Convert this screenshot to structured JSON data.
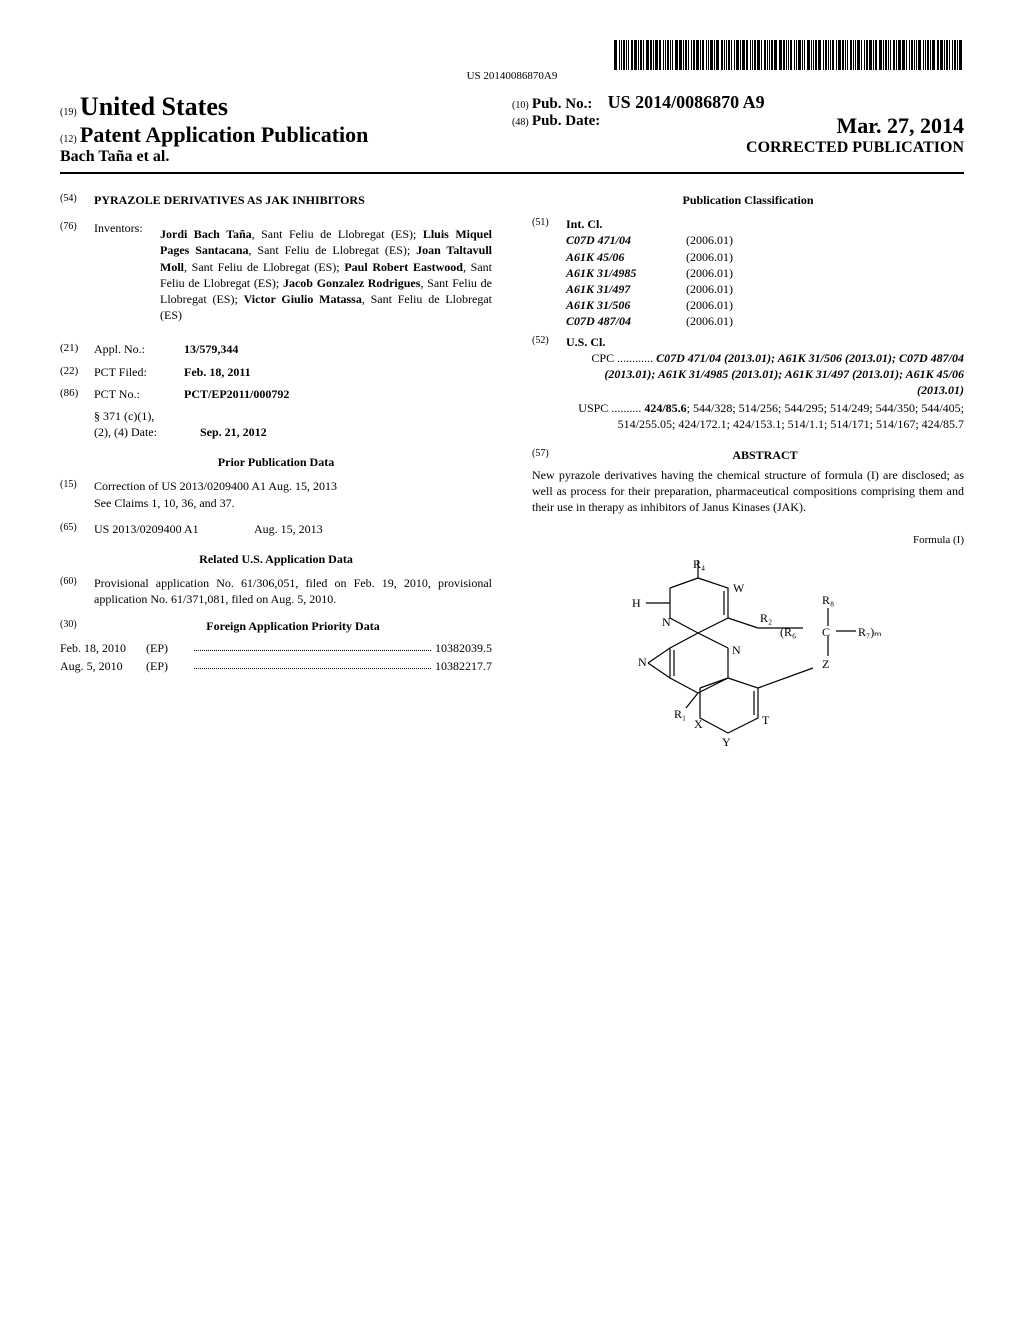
{
  "barcode_number": "US 20140086870A9",
  "header": {
    "left": {
      "l1_code": "(19)",
      "l1_text": "United States",
      "l2_code": "(12)",
      "l2_text": "Patent Application Publication",
      "authors": "Bach Taña et al."
    },
    "right": {
      "l1_code": "(10)",
      "l1_label": "Pub. No.:",
      "l1_val": "US 2014/0086870 A9",
      "l2_code": "(48)",
      "l2_label": "Pub. Date:",
      "l2_val": "Mar. 27, 2014",
      "l3": "CORRECTED PUBLICATION"
    }
  },
  "left_col": {
    "code54": "(54)",
    "title54": "PYRAZOLE DERIVATIVES AS JAK INHIBITORS",
    "code76": "(76)",
    "label76": "Inventors:",
    "inventors_html": [
      [
        "Jordi Bach Taña",
        ", Sant Feliu de Llobregat (ES); "
      ],
      [
        "Lluis Miquel Pages Santacana",
        ", Sant Feliu de Llobregat (ES); "
      ],
      [
        "Joan Taltavull Moll",
        ", Sant Feliu de Llobregat (ES); "
      ],
      [
        "Paul Robert Eastwood",
        ", Sant Feliu de Llobregat (ES); "
      ],
      [
        "Jacob Gonzalez Rodrigues",
        ", Sant Feliu de Llobregat (ES); "
      ],
      [
        "Victor Giulio Matassa",
        ", Sant Feliu de Llobregat (ES)"
      ]
    ],
    "entries": [
      {
        "code": "(21)",
        "label": "Appl. No.:",
        "val": "13/579,344"
      },
      {
        "code": "(22)",
        "label": "PCT Filed:",
        "val": "Feb. 18, 2011"
      },
      {
        "code": "(86)",
        "label": "PCT No.:",
        "val": "PCT/EP2011/000792"
      }
    ],
    "s371_lines": [
      "§ 371 (c)(1),",
      "(2), (4) Date:"
    ],
    "s371_date": "Sep. 21, 2012",
    "prior_pub_title": "Prior Publication Data",
    "code15": "(15)",
    "correction15": "Correction of US 2013/0209400 A1 Aug. 15, 2013",
    "see15": "See Claims 1, 10, 36, and 37.",
    "code65": "(65)",
    "val65a": "US 2013/0209400 A1",
    "val65b": "Aug. 15, 2013",
    "related_title": "Related U.S. Application Data",
    "code60": "(60)",
    "text60": "Provisional application No. 61/306,051, filed on Feb. 19, 2010, provisional application No. 61/371,081, filed on Aug. 5, 2010.",
    "code30": "(30)",
    "fap_title": "Foreign Application Priority Data",
    "fap": [
      {
        "date": "Feb. 18, 2010",
        "cc": "(EP)",
        "num": "10382039.5"
      },
      {
        "date": "Aug. 5, 2010",
        "cc": "(EP)",
        "num": "10382217.7"
      }
    ]
  },
  "right_col": {
    "pub_class_title": "Publication Classification",
    "code51": "(51)",
    "intcl_label": "Int. Cl.",
    "intcl": [
      {
        "sym": "C07D 471/04",
        "yr": "(2006.01)"
      },
      {
        "sym": "A61K 45/06",
        "yr": "(2006.01)"
      },
      {
        "sym": "A61K 31/4985",
        "yr": "(2006.01)"
      },
      {
        "sym": "A61K 31/497",
        "yr": "(2006.01)"
      },
      {
        "sym": "A61K 31/506",
        "yr": "(2006.01)"
      },
      {
        "sym": "C07D 487/04",
        "yr": "(2006.01)"
      }
    ],
    "code52": "(52)",
    "uscl_label": "U.S. Cl.",
    "cpc_label": "CPC",
    "cpc_text": "C07D 471/04 (2013.01); A61K 31/506 (2013.01); C07D 487/04 (2013.01); A61K 31/4985 (2013.01); A61K 31/497 (2013.01); A61K 45/06 (2013.01)",
    "uspc_label": "USPC",
    "uspc_text": "424/85.6; 544/328; 514/256; 544/295; 514/249; 544/350; 544/405; 514/255.05; 424/172.1; 424/153.1; 514/1.1; 514/171; 514/167; 424/85.7",
    "code57": "(57)",
    "abstract_label": "ABSTRACT",
    "abstract_text": "New pyrazole derivatives having the chemical structure of formula (I) are disclosed; as well as process for their preparation, pharmaceutical compositions comprising them and their use in therapy as inhibitors of Janus Kinases (JAK).",
    "formula_label": "Formula (I)",
    "chem_labels": {
      "R4": "R₄",
      "W": "W",
      "H": "H",
      "R2": "R₂",
      "R8": "R₈",
      "R6": "(R₆",
      "C": "C",
      "R7": "R₇)ₘ",
      "N1": "N",
      "N2": "N",
      "N3": "N",
      "Z": "Z",
      "R1": "R₁",
      "X": "X",
      "Y": "Y",
      "T": "T"
    }
  }
}
